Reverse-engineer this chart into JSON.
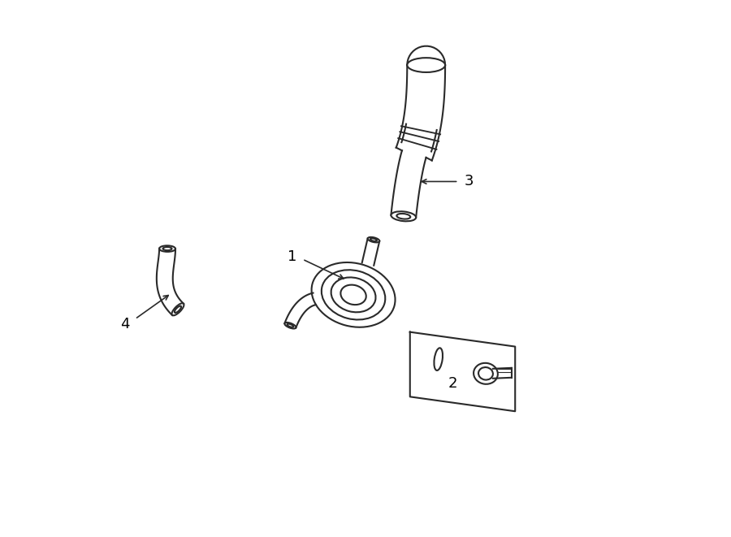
{
  "background_color": "#ffffff",
  "line_color": "#2a2a2a",
  "line_width": 1.5,
  "label_color": "#000000",
  "label_fontsize": 13,
  "fig_width": 9.0,
  "fig_height": 6.61,
  "part_labels": [
    "1",
    "2",
    "3",
    "4"
  ]
}
